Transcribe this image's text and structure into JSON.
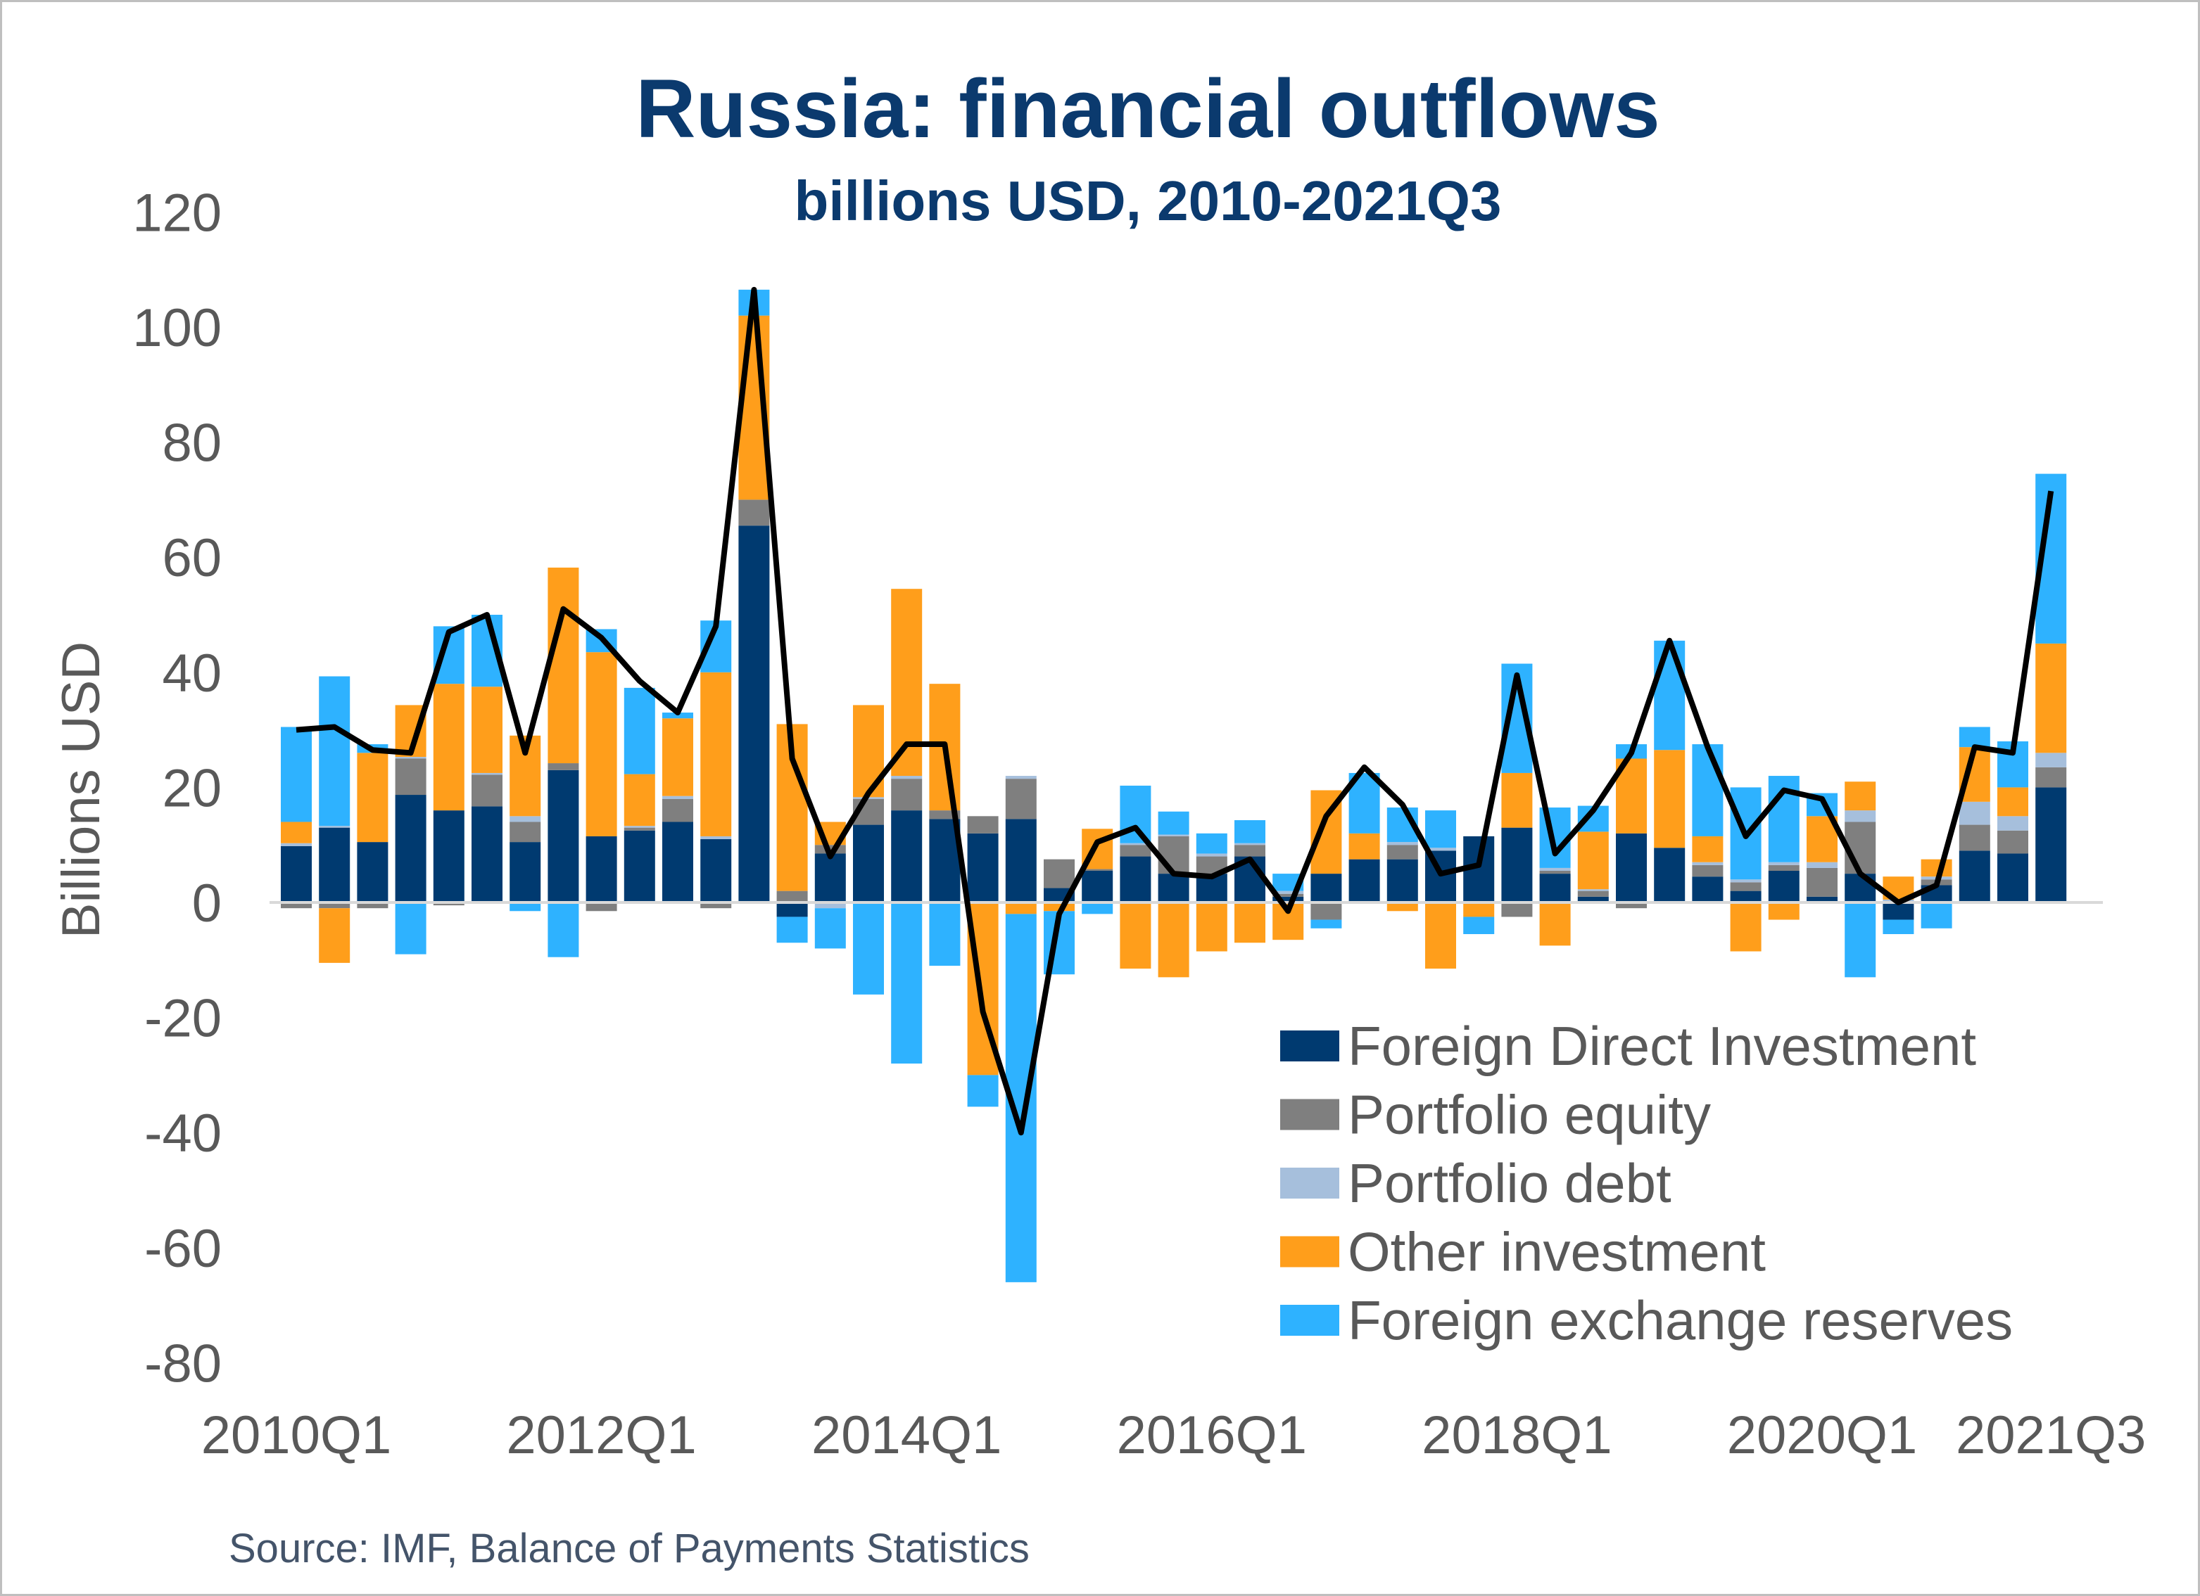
{
  "chart_data": {
    "type": "bar",
    "stacked": true,
    "title": "Russia: financial outflows",
    "subtitle": "billions USD, 2010-2021Q3",
    "xlabel": "",
    "ylabel": "Billions USD",
    "ylim": [
      -80,
      120
    ],
    "yticks": [
      120,
      100,
      80,
      60,
      40,
      20,
      0,
      -20,
      -40,
      -60,
      -80
    ],
    "xtick_labels": [
      "2010Q1",
      "2012Q1",
      "2014Q1",
      "2016Q1",
      "2018Q1",
      "2020Q1",
      "2021Q3"
    ],
    "grid": false,
    "legend_position": "bottom-right",
    "source": "Source: IMF, Balance of Payments Statistics",
    "categories": [
      "2010Q1",
      "2010Q2",
      "2010Q3",
      "2010Q4",
      "2011Q1",
      "2011Q2",
      "2011Q3",
      "2011Q4",
      "2012Q1",
      "2012Q2",
      "2012Q3",
      "2012Q4",
      "2013Q1",
      "2013Q2",
      "2013Q3",
      "2013Q4",
      "2014Q1",
      "2014Q2",
      "2014Q3",
      "2014Q4",
      "2015Q1",
      "2015Q2",
      "2015Q3",
      "2015Q4",
      "2016Q1",
      "2016Q2",
      "2016Q3",
      "2016Q4",
      "2017Q1",
      "2017Q2",
      "2017Q3",
      "2017Q4",
      "2018Q1",
      "2018Q2",
      "2018Q3",
      "2018Q4",
      "2019Q1",
      "2019Q2",
      "2019Q3",
      "2019Q4",
      "2020Q1",
      "2020Q2",
      "2020Q3",
      "2020Q4",
      "2021Q1",
      "2021Q2",
      "2021Q3"
    ],
    "series": [
      {
        "name": "Foreign Direct Investment",
        "color": "#003a70",
        "values": [
          9.8,
          13,
          10.5,
          18.7,
          16,
          16.7,
          10.5,
          23,
          11.5,
          12.5,
          14,
          11,
          65.5,
          -2.5,
          8.5,
          13.5,
          16,
          14.5,
          12,
          14.5,
          2.5,
          5.5,
          8,
          5,
          5,
          8,
          1,
          5,
          7.5,
          7.5,
          9,
          11.5,
          13,
          5,
          1,
          12,
          9.5,
          4.5,
          2,
          5.5,
          1,
          5,
          -3,
          3,
          9,
          8.5,
          20
        ]
      },
      {
        "name": "Portfolio equity",
        "color": "#7f7f7f",
        "values": [
          -1,
          -1,
          -1,
          6.3,
          -0.5,
          5.5,
          3.5,
          1.2,
          -1.5,
          0.5,
          4,
          -1,
          4.5,
          2,
          1.5,
          4.5,
          5.5,
          1.5,
          3,
          7,
          5,
          0.3,
          2,
          6.5,
          3,
          2,
          0.5,
          -3,
          0,
          2.5,
          0,
          0,
          -2.5,
          0.5,
          1,
          -1,
          0,
          2,
          1.5,
          1,
          5,
          9,
          0,
          1,
          4.5,
          4,
          3.5
        ]
      },
      {
        "name": "Portfolio debt",
        "color": "#a6bfdc",
        "values": [
          0.5,
          0.3,
          0,
          0.3,
          0,
          0.3,
          1,
          0,
          0,
          0.3,
          0.5,
          0.5,
          0,
          0,
          -1,
          0.3,
          0.5,
          0,
          0,
          0.5,
          0,
          0,
          0.3,
          0.3,
          0.5,
          0.3,
          0.5,
          0,
          0,
          0.5,
          0.5,
          0,
          0,
          0.5,
          0.3,
          0,
          0,
          0.5,
          0.5,
          0.5,
          1,
          2,
          0.5,
          0.5,
          4,
          2.5,
          2.5
        ]
      },
      {
        "name": "Other investment",
        "color": "#ff9e1b",
        "values": [
          3.7,
          -9.5,
          15.5,
          9,
          22,
          15,
          14,
          34,
          32,
          9,
          13.5,
          28.5,
          32,
          29,
          4,
          16,
          32.5,
          22,
          -30,
          -2,
          -1.5,
          7,
          -11.5,
          -13,
          -8.5,
          -7,
          -6.5,
          14.5,
          4.5,
          -1.5,
          -11.5,
          -2.5,
          9.5,
          -7.5,
          10,
          13,
          17,
          4.5,
          -8.5,
          -3,
          8,
          5,
          4,
          3,
          9.5,
          5,
          19
        ]
      },
      {
        "name": "Foreign exchange reserves",
        "color": "#2eb2ff",
        "values": [
          16.5,
          26,
          1.5,
          -9,
          10,
          12.5,
          -1.5,
          -9.5,
          4,
          15,
          1,
          9,
          4.5,
          -4.5,
          -7,
          -16,
          -28,
          -11,
          -5.5,
          -64,
          -11,
          -2,
          10,
          4,
          3.5,
          4,
          3,
          -1.5,
          10.5,
          6,
          6.5,
          -3,
          19,
          10.5,
          4.5,
          2.5,
          19,
          16,
          16,
          15,
          4,
          -13,
          -2.5,
          -4.5,
          3.5,
          8,
          29.5
        ]
      }
    ],
    "line": {
      "color": "#000000",
      "values": [
        30,
        30.5,
        26.5,
        26,
        47,
        50,
        26,
        51,
        46,
        38.5,
        33,
        48,
        106.5,
        25,
        8,
        19,
        27.5,
        27.5,
        -19,
        -40,
        -2,
        10.5,
        13,
        5,
        4.5,
        7.5,
        -1.5,
        15,
        23.5,
        17,
        5,
        6.5,
        39.5,
        8.5,
        16,
        26,
        45.5,
        27,
        11.5,
        19.5,
        18,
        5,
        0,
        3,
        27,
        26,
        71.5
      ]
    }
  }
}
